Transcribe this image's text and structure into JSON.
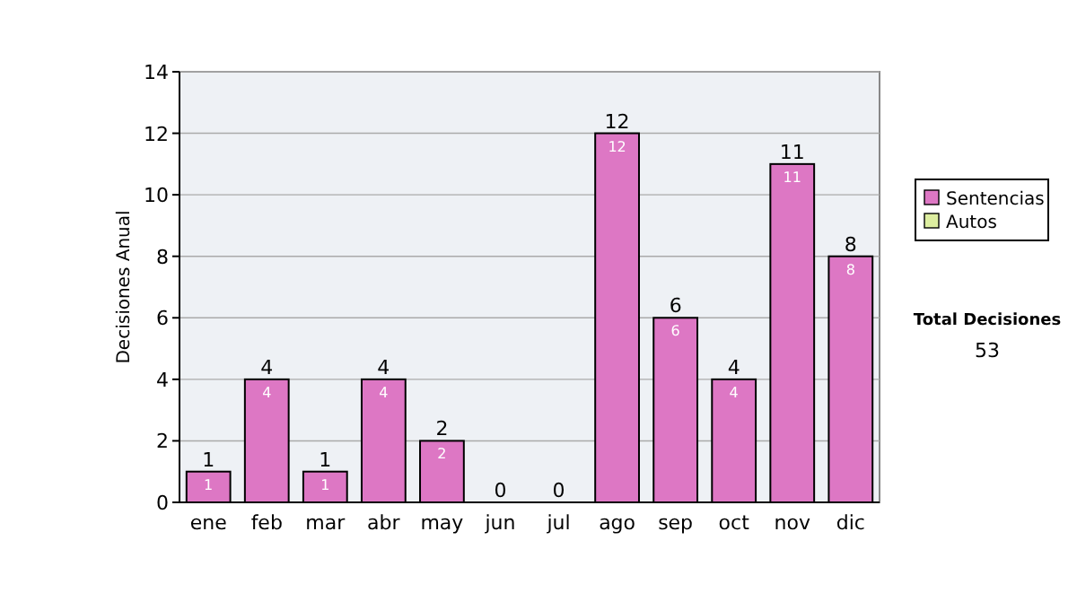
{
  "chart_data": {
    "type": "bar",
    "ylabel": "Decisiones Anual",
    "categories": [
      "ene",
      "feb",
      "mar",
      "abr",
      "may",
      "jun",
      "jul",
      "ago",
      "sep",
      "oct",
      "nov",
      "dic"
    ],
    "series": [
      {
        "name": "Sentencias",
        "color": "#dd77c4",
        "values": [
          1,
          4,
          1,
          4,
          2,
          0,
          0,
          12,
          6,
          4,
          11,
          8
        ],
        "value_labels": [
          "1",
          "4",
          "1",
          "4",
          "2",
          null,
          null,
          "12",
          "6",
          "4",
          "11",
          "8"
        ]
      },
      {
        "name": "Autos",
        "color": "#ddeea0",
        "values": [
          0,
          0,
          0,
          0,
          0,
          0,
          0,
          0,
          0,
          0,
          0,
          0
        ]
      }
    ],
    "stacked": true,
    "totals": [
      "1",
      "4",
      "1",
      "4",
      "2",
      "0",
      "0",
      "12",
      "6",
      "4",
      "11",
      "8"
    ],
    "ylim": [
      0,
      14
    ],
    "yticks": [
      0,
      2,
      4,
      6,
      8,
      10,
      12,
      14
    ],
    "grid": "y",
    "legend": "right",
    "annotations": [
      "Total Decisiones",
      "53"
    ]
  }
}
